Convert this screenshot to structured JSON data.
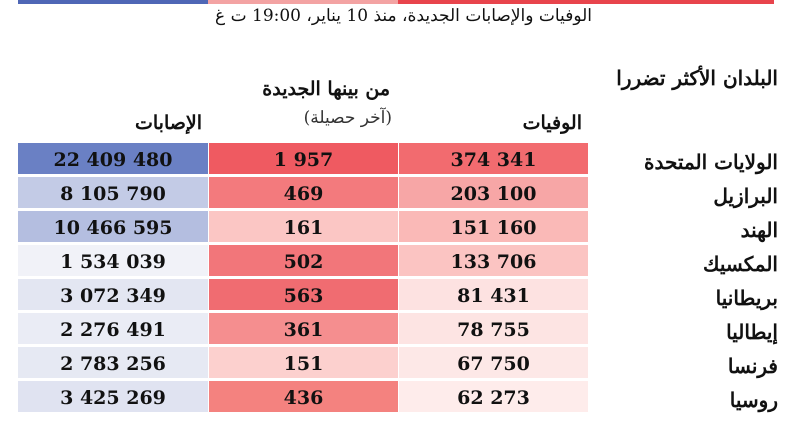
{
  "colors": {
    "bar_blue": "#4f67b6",
    "bar_red_light": "#f3a3a3",
    "bar_red": "#e8444c"
  },
  "subtitle": "الوفيات والإصابات الجديدة، منذ 10 يناير، 19:00 ت غ",
  "section_title": "البلدان الأكثر تضررا",
  "headers": {
    "deaths": "الوفيات",
    "new_deaths": "من بينها الجديدة",
    "new_deaths_note": "(آخر حصيلة)",
    "cases": "الإصابات"
  },
  "rows": [
    {
      "country": "الولايات المتحدة",
      "deaths": "374 341",
      "new": "1 957",
      "cases": "22 409 480",
      "deaths_color": "#f26b6f",
      "new_color": "#ef5a61",
      "cases_color": "#6a80c4"
    },
    {
      "country": "البرازيل",
      "deaths": "203 100",
      "new": "469",
      "cases": "8 105 790",
      "deaths_color": "#f7a6a6",
      "new_color": "#f37a7d",
      "cases_color": "#c3cbe6"
    },
    {
      "country": "الهند",
      "deaths": "151 160",
      "new": "161",
      "cases": "10 466 595",
      "deaths_color": "#fab9b7",
      "new_color": "#fbc6c4",
      "cases_color": "#b4bee0"
    },
    {
      "country": "المكسيك",
      "deaths": "133 706",
      "new": "502",
      "cases": "1 534 039",
      "deaths_color": "#fbc4c2",
      "new_color": "#f2767a",
      "cases_color": "#f1f2f8"
    },
    {
      "country": "بريطانيا",
      "deaths": "81 431",
      "new": "563",
      "cases": "3 072 349",
      "deaths_color": "#fde2e1",
      "new_color": "#f06c71",
      "cases_color": "#e3e6f2"
    },
    {
      "country": "إيطاليا",
      "deaths": "78 755",
      "new": "361",
      "cases": "2 276 491",
      "deaths_color": "#fde4e3",
      "new_color": "#f58e8f",
      "cases_color": "#eaecf5"
    },
    {
      "country": "فرنسا",
      "deaths": "67 750",
      "new": "151",
      "cases": "2 783 256",
      "deaths_color": "#fde8e7",
      "new_color": "#fcd0ce",
      "cases_color": "#e6e9f3"
    },
    {
      "country": "روسيا",
      "deaths": "62 273",
      "new": "436",
      "cases": "3 425 269",
      "deaths_color": "#feeceb",
      "new_color": "#f4827f",
      "cases_color": "#e0e3f1"
    }
  ]
}
